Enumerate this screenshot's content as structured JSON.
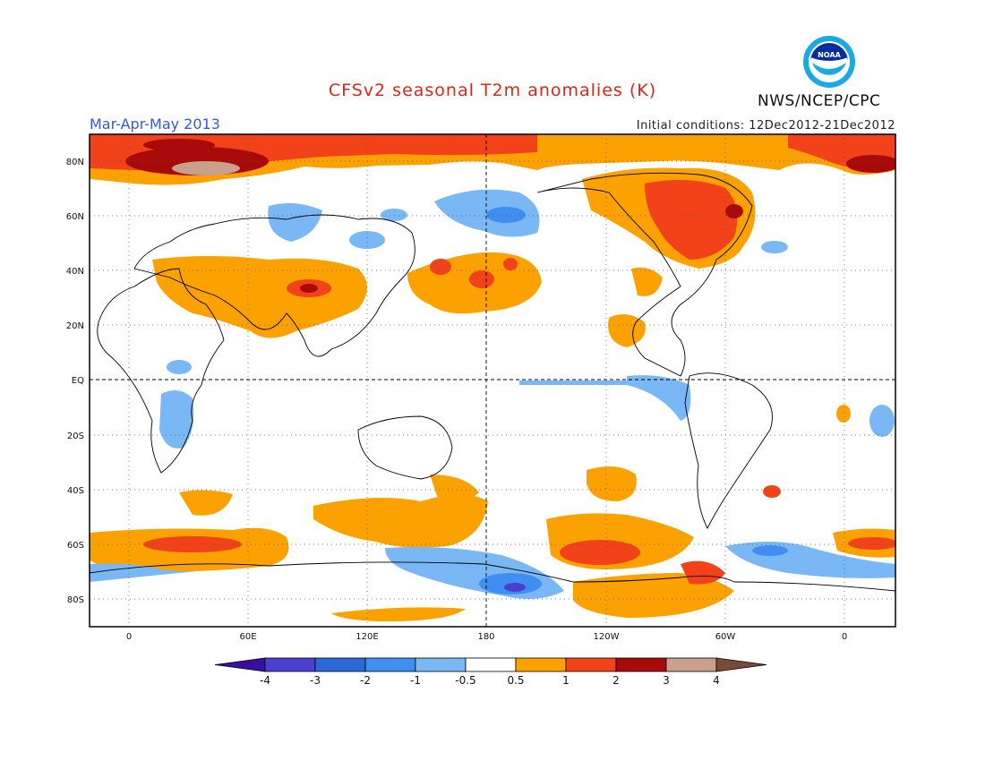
{
  "title": "CFSv2 seasonal T2m anomalies (K)",
  "season": "Mar-Apr-May 2013",
  "initial_conditions": "Initial conditions: 12Dec2012-21Dec2012",
  "agency": "NWS/NCEP/CPC",
  "logo_text": "NOAA",
  "lat_labels": [
    "80N",
    "60N",
    "40N",
    "20N",
    "EQ",
    "20S",
    "40S",
    "60S",
    "80S"
  ],
  "lon_labels": [
    "0",
    "60E",
    "120E",
    "180",
    "120W",
    "60W",
    "0"
  ],
  "colorbar": {
    "labels": [
      "-4",
      "-3",
      "-2",
      "-1",
      "-0.5",
      "0.5",
      "1",
      "2",
      "3",
      "4"
    ],
    "colors": [
      "#3a0fa0",
      "#4b3fd0",
      "#2a6ad8",
      "#3f8ef0",
      "#7ab8f5",
      "#ffffff",
      "#fba200",
      "#f2421a",
      "#a80a0a",
      "#c9a08c",
      "#7a4a38"
    ]
  },
  "colors": {
    "title": "#e0251b",
    "season": "#2f5bd9",
    "warm_light": "#fba200",
    "warm": "#f2421a",
    "warm_strong": "#a80a0a",
    "cool_light": "#7ab8f5",
    "cool": "#3f8ef0",
    "cool_strong": "#2a6ad8"
  }
}
